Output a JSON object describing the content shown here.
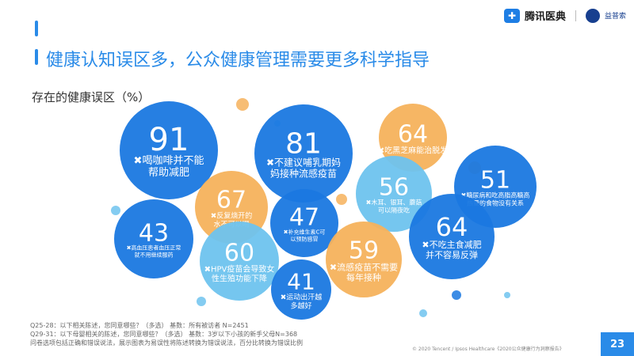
{
  "header": {
    "brand_name": "腾讯医典",
    "partner_name": "益普索",
    "brand_color": "#1e7ee4"
  },
  "title": "健康认知误区多，公众健康管理需要更多科学指导",
  "subtitle": "存在的健康误区（%）",
  "footnote": {
    "line1": "Q25-28：以下相关陈述，您同意哪些？（多选）  基数：所有被访者 N=2451",
    "line2": "Q29-31：以下母婴相关的陈述，您同意哪些？（多选）  基数：3岁以下小孩的新手父母N=368",
    "line3": "问卷选项包括正确和错误说法，展示图表为易误性将陈述转换为错误说法，百分比转换为错误比例"
  },
  "copyright": "© 2020 Tencent / Ipsos Healthcare《2020公众健康行为洞察报告》",
  "page_number": "23",
  "colors": {
    "blue": "#1a78e0",
    "orange": "#f6b25c",
    "light_blue": "#6ec3ee",
    "title_blue": "#2a8be8"
  },
  "chart_data": {
    "type": "bubble",
    "title": "存在的健康误区（%）",
    "bubbles": [
      {
        "value": 91,
        "label": "喝咖啡并不能帮助减肥",
        "color": "blue"
      },
      {
        "value": 81,
        "label": "不建议哺乳期妈妈接种流感疫苗",
        "color": "blue"
      },
      {
        "value": 64,
        "label": "吃黑芝麻能治脱发",
        "color": "orange"
      },
      {
        "value": 67,
        "label": "反复烧开的水不可以喝",
        "color": "orange"
      },
      {
        "value": 47,
        "label": "补充维生素C可以预防感冒",
        "color": "blue"
      },
      {
        "value": 56,
        "label": "木耳、银耳、蘑菇可以隔夜吃",
        "color": "light_blue"
      },
      {
        "value": 51,
        "label": "糖尿病和吃高脂高糖高热量的食物没有关系",
        "color": "blue"
      },
      {
        "value": 43,
        "label": "高血压患者血压正常就不用继续服药",
        "color": "blue"
      },
      {
        "value": 60,
        "label": "HPV疫苗会导致女性生殖功能下降",
        "color": "light_blue"
      },
      {
        "value": 59,
        "label": "流感疫苗不需要每年接种",
        "color": "orange"
      },
      {
        "value": 64,
        "label": "不吃主食减肥并不容易反弹",
        "color": "blue"
      },
      {
        "value": 41,
        "label": "运动出汗越多越好",
        "color": "blue"
      }
    ]
  }
}
